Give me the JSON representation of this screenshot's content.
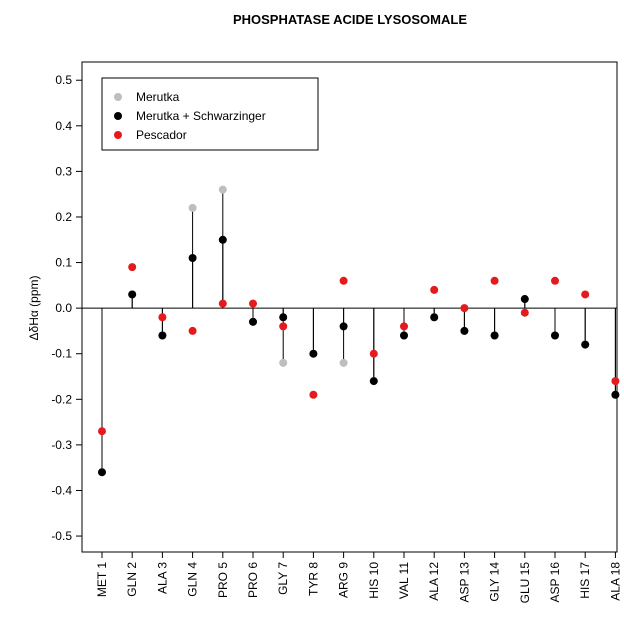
{
  "chart_data": {
    "type": "lollipop",
    "title": "PHOSPHATASE ACIDE LYSOSOMALE",
    "y_label": "ΔδHα (ppm)",
    "categories": [
      "MET 1",
      "GLN 2",
      "ALA 3",
      "GLN 4",
      "PRO 5",
      "PRO 6",
      "GLY 7",
      "TYR 8",
      "ARG 9",
      "HIS 10",
      "VAL 11",
      "ALA 12",
      "ASP 13",
      "GLY 14",
      "GLU 15",
      "ASP 16",
      "HIS 17",
      "ALA 18"
    ],
    "series": [
      {
        "name": "Merutka",
        "color": "#bebebe",
        "values": [
          -0.36,
          0.03,
          -0.06,
          0.22,
          0.26,
          -0.03,
          -0.12,
          -0.1,
          -0.12,
          -0.16,
          -0.06,
          -0.02,
          -0.05,
          -0.06,
          0.02,
          -0.06,
          -0.08,
          -0.19
        ]
      },
      {
        "name": "Merutka + Schwarzinger",
        "color": "#000000",
        "values": [
          -0.36,
          0.03,
          -0.06,
          0.11,
          0.15,
          -0.03,
          -0.02,
          -0.1,
          -0.04,
          -0.16,
          -0.06,
          -0.02,
          -0.05,
          -0.06,
          0.02,
          -0.06,
          -0.08,
          -0.19
        ]
      },
      {
        "name": "Pescador",
        "color": "#e41a1c",
        "values": [
          -0.27,
          0.09,
          -0.02,
          -0.05,
          0.01,
          0.01,
          -0.04,
          -0.19,
          0.06,
          -0.1,
          -0.04,
          0.04,
          0.0,
          0.06,
          -0.01,
          0.06,
          0.03,
          -0.16
        ]
      }
    ],
    "ylim": [
      -0.535,
      0.54
    ],
    "yticks": [
      -0.5,
      -0.4,
      -0.3,
      -0.2,
      -0.1,
      {
        "value": 0,
        "label": "0.0"
      },
      0.1,
      0.2,
      0.3,
      0.4,
      0.5
    ],
    "legend": "top-left"
  }
}
